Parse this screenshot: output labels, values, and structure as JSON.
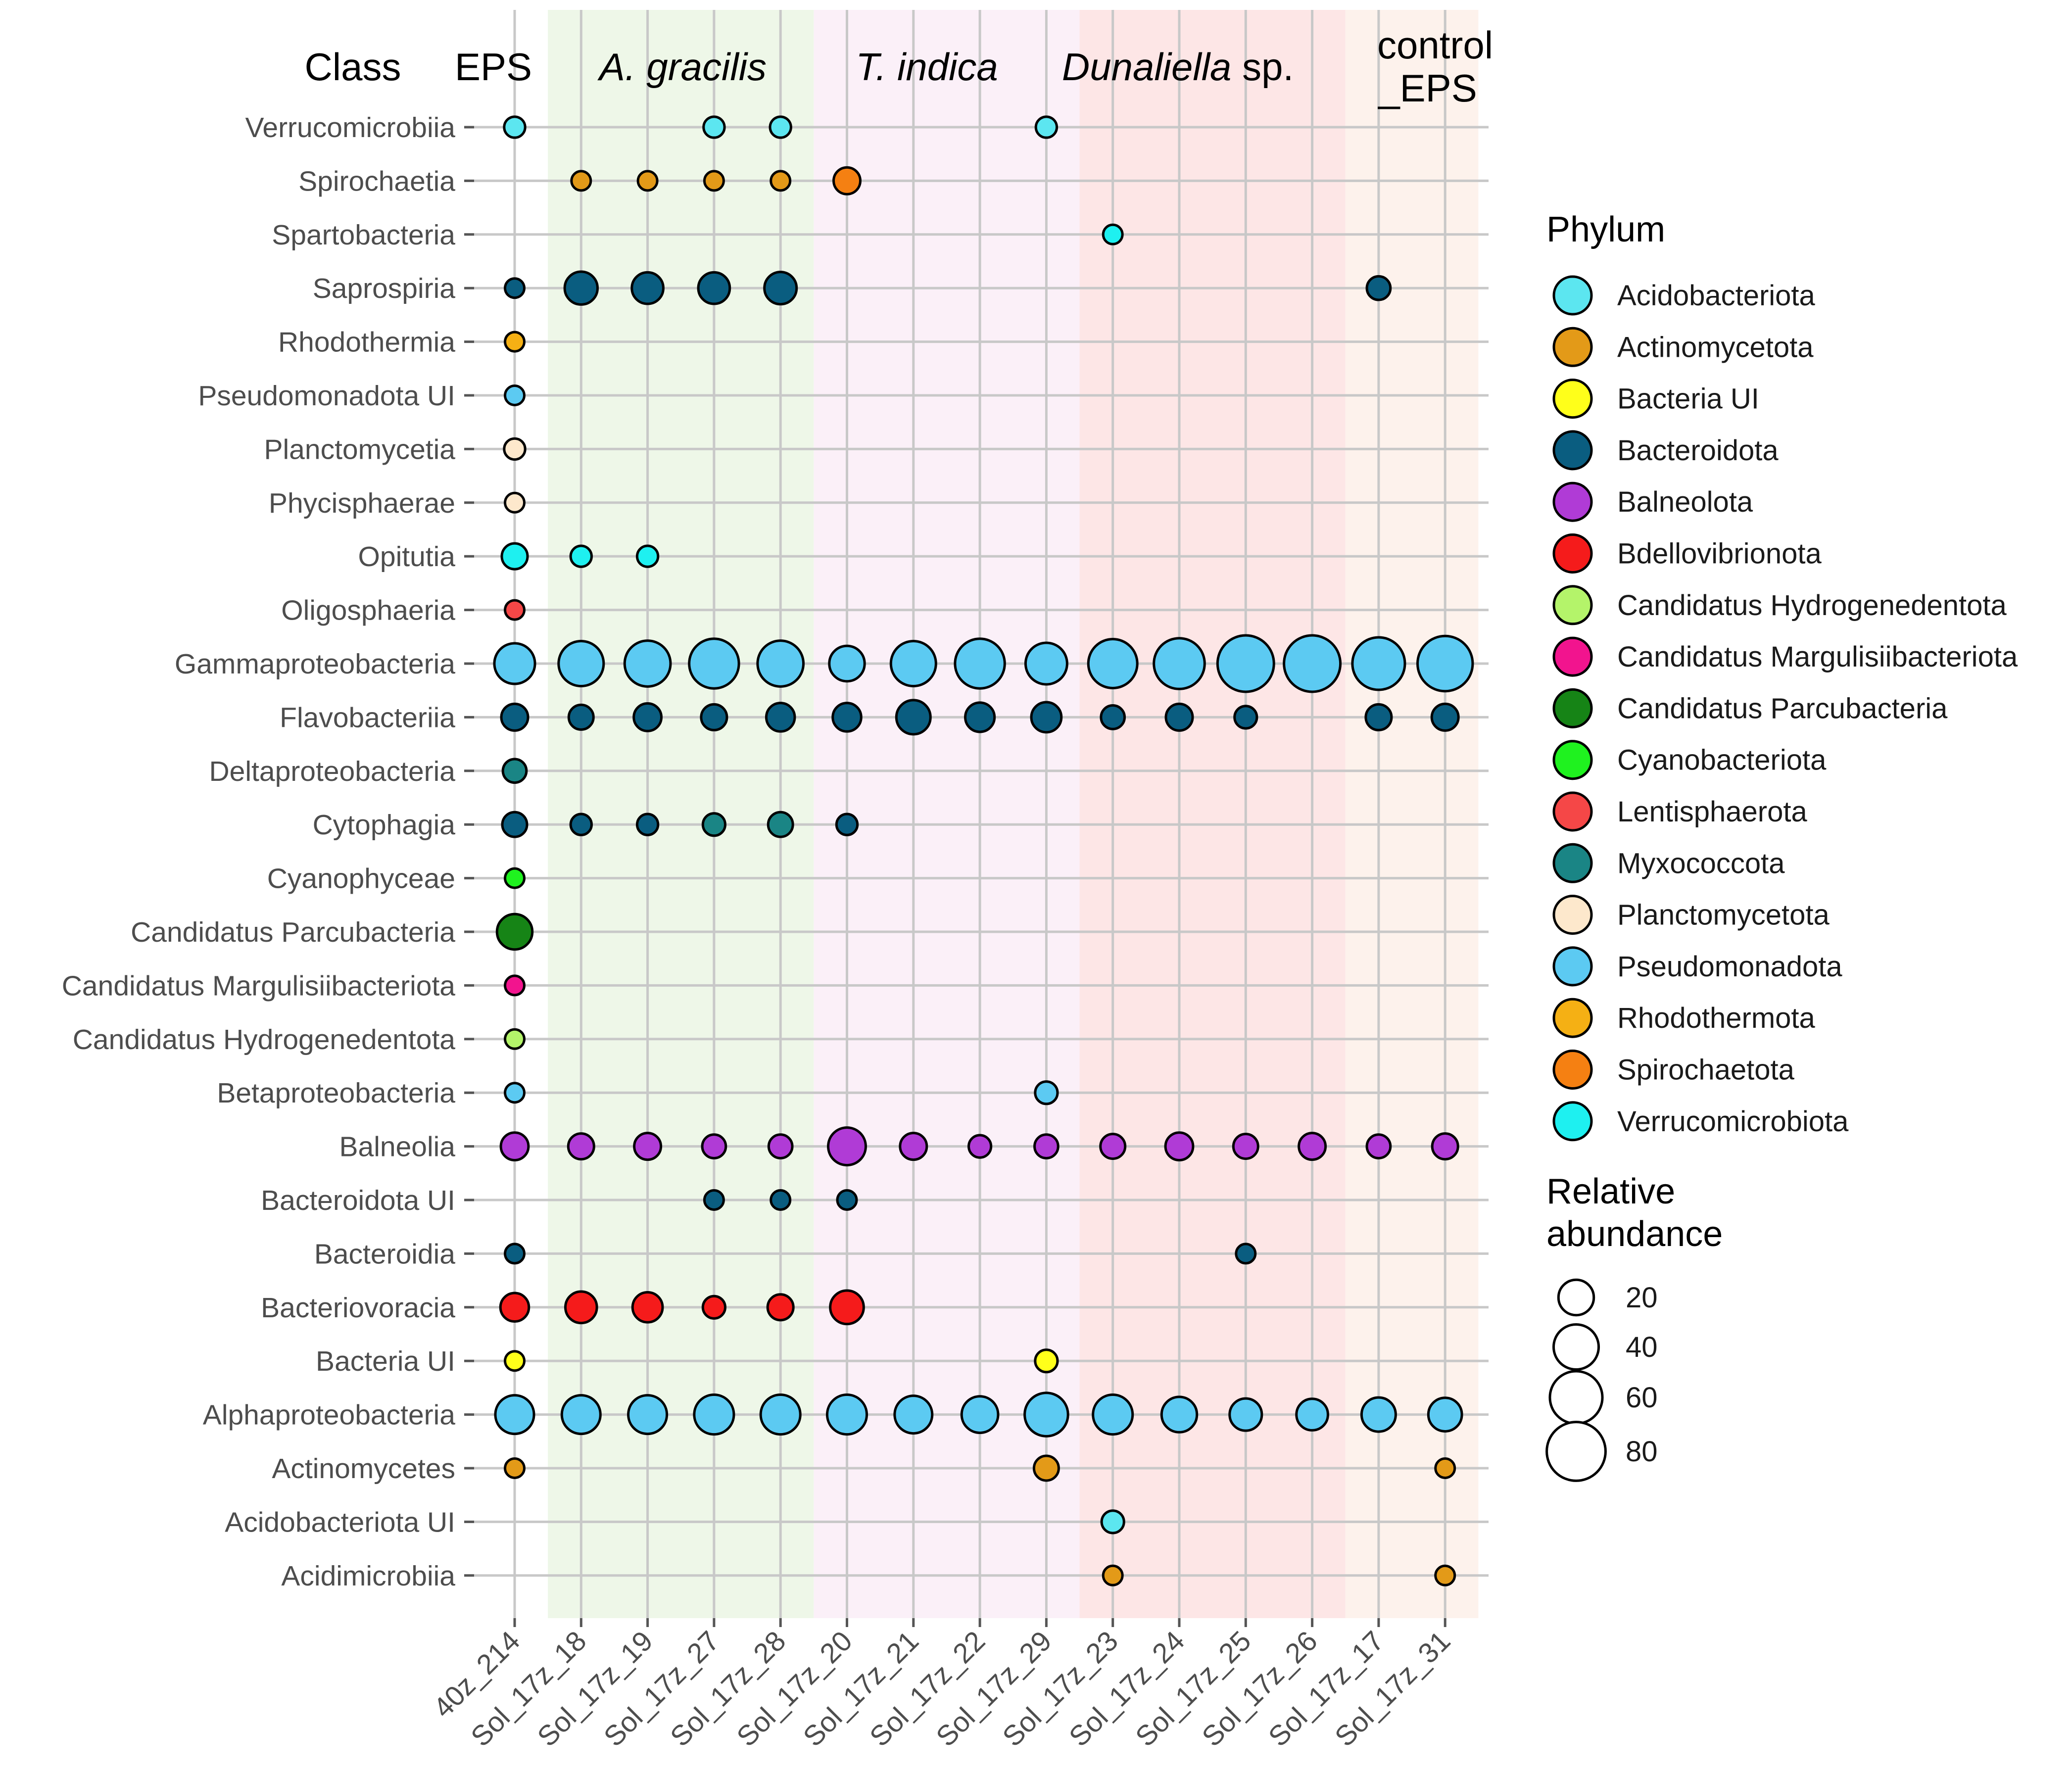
{
  "chart_data": {
    "type": "bubble",
    "headers": {
      "class": "Class",
      "eps": "EPS",
      "groups": [
        {
          "name": "A. gracilis",
          "italic": "A. gracilis",
          "rest": "",
          "color": "#eef7e8",
          "from": "Sol_17z_18",
          "to": "Sol_17z_28"
        },
        {
          "name": "T. indica",
          "italic": "T. indica",
          "rest": "",
          "color": "#fbf0f8",
          "from": "Sol_17z_20",
          "to": "Sol_17z_29"
        },
        {
          "name": "Dunaliella sp.",
          "italic": "Dunaliella",
          "rest": " sp.",
          "color": "#fde6e6",
          "from": "Sol_17z_23",
          "to": "Sol_17z_26"
        },
        {
          "name": "control_EPS",
          "line1": "control",
          "line2": "_EPS",
          "color": "#fdf2ec",
          "from": "Sol_17z_17",
          "to": "Sol_17z_31"
        }
      ]
    },
    "samples": [
      "40z_214",
      "Sol_17z_18",
      "Sol_17z_19",
      "Sol_17z_27",
      "Sol_17z_28",
      "Sol_17z_20",
      "Sol_17z_21",
      "Sol_17z_22",
      "Sol_17z_29",
      "Sol_17z_23",
      "Sol_17z_24",
      "Sol_17z_25",
      "Sol_17z_26",
      "Sol_17z_17",
      "Sol_17z_31"
    ],
    "classes": [
      "Verrucomicrobiia",
      "Spirochaetia",
      "Spartobacteria",
      "Saprospiria",
      "Rhodothermia",
      "Pseudomonadota UI",
      "Planctomycetia",
      "Phycisphaerae",
      "Opitutia",
      "Oligosphaeria",
      "Gammaproteobacteria",
      "Flavobacteriia",
      "Deltaproteobacteria",
      "Cytophagia",
      "Cyanophyceae",
      "Candidatus Parcubacteria",
      "Candidatus Margulisiibacteriota",
      "Candidatus Hydrogenedentota",
      "Betaproteobacteria",
      "Balneolia",
      "Bacteroidota UI",
      "Bacteroidia",
      "Bacteriovoracia",
      "Bacteria UI",
      "Alphaproteobacteria",
      "Actinomycetes",
      "Acidobacteriota UI",
      "Acidimicrobiia"
    ],
    "phyla": [
      {
        "name": "Acidobacteriota",
        "color": "#5ce6f0"
      },
      {
        "name": "Actinomycetota",
        "color": "#e39a18"
      },
      {
        "name": "Bacteria UI",
        "color": "#ffff1a"
      },
      {
        "name": "Bacteroidota",
        "color": "#0a5d80"
      },
      {
        "name": "Balneolota",
        "color": "#b03bd6"
      },
      {
        "name": "Bdellovibrionota",
        "color": "#f51b1b"
      },
      {
        "name": "Candidatus Hydrogenedentota",
        "color": "#b4f46a"
      },
      {
        "name": "Candidatus Margulisiibacteriota",
        "color": "#f2148e"
      },
      {
        "name": "Candidatus Parcubacteria",
        "color": "#168416"
      },
      {
        "name": "Cyanobacteriota",
        "color": "#1ff21f"
      },
      {
        "name": "Lentisphaerota",
        "color": "#f54747"
      },
      {
        "name": "Myxococcota",
        "color": "#1a8585"
      },
      {
        "name": "Planctomycetota",
        "color": "#fde8cc"
      },
      {
        "name": "Pseudomonadota",
        "color": "#5ccaf2"
      },
      {
        "name": "Rhodothermota",
        "color": "#f5b014"
      },
      {
        "name": "Spirochaetota",
        "color": "#f58012"
      },
      {
        "name": "Verrucomicrobiota",
        "color": "#1ef0f0"
      }
    ],
    "size_legend": {
      "title_line1": "Relative",
      "title_line2": "abundance",
      "values": [
        20,
        40,
        60,
        80
      ]
    },
    "legend_title": "Phylum",
    "points": [
      {
        "class": "Verrucomicrobiia",
        "phylum": "Acidobacteriota",
        "sample": "40z_214",
        "value": 3
      },
      {
        "class": "Verrucomicrobiia",
        "phylum": "Acidobacteriota",
        "sample": "Sol_17z_27",
        "value": 3
      },
      {
        "class": "Verrucomicrobiia",
        "phylum": "Acidobacteriota",
        "sample": "Sol_17z_28",
        "value": 3
      },
      {
        "class": "Verrucomicrobiia",
        "phylum": "Acidobacteriota",
        "sample": "Sol_17z_29",
        "value": 3
      },
      {
        "class": "Spirochaetia",
        "phylum": "Actinomycetota",
        "sample": "Sol_17z_18",
        "value": 2
      },
      {
        "class": "Spirochaetia",
        "phylum": "Actinomycetota",
        "sample": "Sol_17z_19",
        "value": 2
      },
      {
        "class": "Spirochaetia",
        "phylum": "Actinomycetota",
        "sample": "Sol_17z_27",
        "value": 2
      },
      {
        "class": "Spirochaetia",
        "phylum": "Actinomycetota",
        "sample": "Sol_17z_28",
        "value": 2
      },
      {
        "class": "Spirochaetia",
        "phylum": "Spirochaetota",
        "sample": "Sol_17z_20",
        "value": 8
      },
      {
        "class": "Spartobacteria",
        "phylum": "Verrucomicrobiota",
        "sample": "Sol_17z_23",
        "value": 2
      },
      {
        "class": "Saprospiria",
        "phylum": "Bacteroidota",
        "sample": "40z_214",
        "value": 2
      },
      {
        "class": "Saprospiria",
        "phylum": "Bacteroidota",
        "sample": "Sol_17z_18",
        "value": 16
      },
      {
        "class": "Saprospiria",
        "phylum": "Bacteroidota",
        "sample": "Sol_17z_19",
        "value": 14
      },
      {
        "class": "Saprospiria",
        "phylum": "Bacteroidota",
        "sample": "Sol_17z_27",
        "value": 14
      },
      {
        "class": "Saprospiria",
        "phylum": "Bacteroidota",
        "sample": "Sol_17z_28",
        "value": 15
      },
      {
        "class": "Saprospiria",
        "phylum": "Bacteroidota",
        "sample": "Sol_17z_17",
        "value": 5
      },
      {
        "class": "Rhodothermia",
        "phylum": "Rhodothermota",
        "sample": "40z_214",
        "value": 2
      },
      {
        "class": "Pseudomonadota UI",
        "phylum": "Pseudomonadota",
        "sample": "40z_214",
        "value": 2
      },
      {
        "class": "Planctomycetia",
        "phylum": "Planctomycetota",
        "sample": "40z_214",
        "value": 3
      },
      {
        "class": "Phycisphaerae",
        "phylum": "Planctomycetota",
        "sample": "40z_214",
        "value": 2
      },
      {
        "class": "Opitutia",
        "phylum": "Verrucomicrobiota",
        "sample": "40z_214",
        "value": 7
      },
      {
        "class": "Opitutia",
        "phylum": "Verrucomicrobiota",
        "sample": "Sol_17z_18",
        "value": 3
      },
      {
        "class": "Opitutia",
        "phylum": "Verrucomicrobiota",
        "sample": "Sol_17z_19",
        "value": 3
      },
      {
        "class": "Oligosphaeria",
        "phylum": "Lentisphaerota",
        "sample": "40z_214",
        "value": 2
      },
      {
        "class": "Gammaproteobacteria",
        "phylum": "Pseudomonadota",
        "sample": "40z_214",
        "value": 30
      },
      {
        "class": "Gammaproteobacteria",
        "phylum": "Pseudomonadota",
        "sample": "Sol_17z_18",
        "value": 40
      },
      {
        "class": "Gammaproteobacteria",
        "phylum": "Pseudomonadota",
        "sample": "Sol_17z_19",
        "value": 42
      },
      {
        "class": "Gammaproteobacteria",
        "phylum": "Pseudomonadota",
        "sample": "Sol_17z_27",
        "value": 52
      },
      {
        "class": "Gammaproteobacteria",
        "phylum": "Pseudomonadota",
        "sample": "Sol_17z_28",
        "value": 42
      },
      {
        "class": "Gammaproteobacteria",
        "phylum": "Pseudomonadota",
        "sample": "Sol_17z_20",
        "value": 20
      },
      {
        "class": "Gammaproteobacteria",
        "phylum": "Pseudomonadota",
        "sample": "Sol_17z_21",
        "value": 40
      },
      {
        "class": "Gammaproteobacteria",
        "phylum": "Pseudomonadota",
        "sample": "Sol_17z_22",
        "value": 52
      },
      {
        "class": "Gammaproteobacteria",
        "phylum": "Pseudomonadota",
        "sample": "Sol_17z_29",
        "value": 32
      },
      {
        "class": "Gammaproteobacteria",
        "phylum": "Pseudomonadota",
        "sample": "Sol_17z_23",
        "value": 50
      },
      {
        "class": "Gammaproteobacteria",
        "phylum": "Pseudomonadota",
        "sample": "Sol_17z_24",
        "value": 55
      },
      {
        "class": "Gammaproteobacteria",
        "phylum": "Pseudomonadota",
        "sample": "Sol_17z_25",
        "value": 72
      },
      {
        "class": "Gammaproteobacteria",
        "phylum": "Pseudomonadota",
        "sample": "Sol_17z_26",
        "value": 72
      },
      {
        "class": "Gammaproteobacteria",
        "phylum": "Pseudomonadota",
        "sample": "Sol_17z_17",
        "value": 60
      },
      {
        "class": "Gammaproteobacteria",
        "phylum": "Pseudomonadota",
        "sample": "Sol_17z_31",
        "value": 68
      },
      {
        "class": "Flavobacteriia",
        "phylum": "Bacteroidota",
        "sample": "40z_214",
        "value": 8
      },
      {
        "class": "Flavobacteriia",
        "phylum": "Bacteroidota",
        "sample": "Sol_17z_18",
        "value": 6
      },
      {
        "class": "Flavobacteriia",
        "phylum": "Bacteroidota",
        "sample": "Sol_17z_19",
        "value": 9
      },
      {
        "class": "Flavobacteriia",
        "phylum": "Bacteroidota",
        "sample": "Sol_17z_27",
        "value": 7
      },
      {
        "class": "Flavobacteriia",
        "phylum": "Bacteroidota",
        "sample": "Sol_17z_28",
        "value": 10
      },
      {
        "class": "Flavobacteriia",
        "phylum": "Bacteroidota",
        "sample": "Sol_17z_20",
        "value": 10
      },
      {
        "class": "Flavobacteriia",
        "phylum": "Bacteroidota",
        "sample": "Sol_17z_21",
        "value": 18
      },
      {
        "class": "Flavobacteriia",
        "phylum": "Bacteroidota",
        "sample": "Sol_17z_22",
        "value": 11
      },
      {
        "class": "Flavobacteriia",
        "phylum": "Bacteroidota",
        "sample": "Sol_17z_29",
        "value": 12
      },
      {
        "class": "Flavobacteriia",
        "phylum": "Bacteroidota",
        "sample": "Sol_17z_23",
        "value": 5
      },
      {
        "class": "Flavobacteriia",
        "phylum": "Bacteroidota",
        "sample": "Sol_17z_24",
        "value": 8
      },
      {
        "class": "Flavobacteriia",
        "phylum": "Bacteroidota",
        "sample": "Sol_17z_25",
        "value": 4
      },
      {
        "class": "Flavobacteriia",
        "phylum": "Bacteroidota",
        "sample": "Sol_17z_17",
        "value": 7
      },
      {
        "class": "Flavobacteriia",
        "phylum": "Bacteroidota",
        "sample": "Sol_17z_31",
        "value": 8
      },
      {
        "class": "Deltaproteobacteria",
        "phylum": "Myxococcota",
        "sample": "40z_214",
        "value": 5
      },
      {
        "class": "Cytophagia",
        "phylum": "Bacteroidota",
        "sample": "40z_214",
        "value": 6
      },
      {
        "class": "Cytophagia",
        "phylum": "Bacteroidota",
        "sample": "Sol_17z_18",
        "value": 3
      },
      {
        "class": "Cytophagia",
        "phylum": "Bacteroidota",
        "sample": "Sol_17z_19",
        "value": 3
      },
      {
        "class": "Cytophagia",
        "phylum": "Myxococcota",
        "sample": "Sol_17z_27",
        "value": 4
      },
      {
        "class": "Cytophagia",
        "phylum": "Myxococcota",
        "sample": "Sol_17z_28",
        "value": 6
      },
      {
        "class": "Cytophagia",
        "phylum": "Bacteroidota",
        "sample": "Sol_17z_20",
        "value": 3
      },
      {
        "class": "Cyanophyceae",
        "phylum": "Cyanobacteriota",
        "sample": "40z_214",
        "value": 2
      },
      {
        "class": "Candidatus Parcubacteria",
        "phylum": "Candidatus Parcubacteria",
        "sample": "40z_214",
        "value": 20
      },
      {
        "class": "Candidatus Margulisiibacteriota",
        "phylum": "Candidatus Margulisiibacteriota",
        "sample": "40z_214",
        "value": 2
      },
      {
        "class": "Candidatus Hydrogenedentota",
        "phylum": "Candidatus Hydrogenedentota",
        "sample": "40z_214",
        "value": 2
      },
      {
        "class": "Betaproteobacteria",
        "phylum": "Pseudomonadota",
        "sample": "40z_214",
        "value": 2
      },
      {
        "class": "Betaproteobacteria",
        "phylum": "Pseudomonadota",
        "sample": "Sol_17z_29",
        "value": 4
      },
      {
        "class": "Balneolia",
        "phylum": "Balneolota",
        "sample": "40z_214",
        "value": 9
      },
      {
        "class": "Balneolia",
        "phylum": "Balneolota",
        "sample": "Sol_17z_18",
        "value": 7
      },
      {
        "class": "Balneolia",
        "phylum": "Balneolota",
        "sample": "Sol_17z_19",
        "value": 8
      },
      {
        "class": "Balneolia",
        "phylum": "Balneolota",
        "sample": "Sol_17z_27",
        "value": 5
      },
      {
        "class": "Balneolia",
        "phylum": "Balneolota",
        "sample": "Sol_17z_28",
        "value": 5
      },
      {
        "class": "Balneolia",
        "phylum": "Balneolota",
        "sample": "Sol_17z_20",
        "value": 24
      },
      {
        "class": "Balneolia",
        "phylum": "Balneolota",
        "sample": "Sol_17z_21",
        "value": 8
      },
      {
        "class": "Balneolia",
        "phylum": "Balneolota",
        "sample": "Sol_17z_22",
        "value": 4
      },
      {
        "class": "Balneolia",
        "phylum": "Balneolota",
        "sample": "Sol_17z_29",
        "value": 5
      },
      {
        "class": "Balneolia",
        "phylum": "Balneolota",
        "sample": "Sol_17z_23",
        "value": 6
      },
      {
        "class": "Balneolia",
        "phylum": "Balneolota",
        "sample": "Sol_17z_24",
        "value": 9
      },
      {
        "class": "Balneolia",
        "phylum": "Balneolota",
        "sample": "Sol_17z_25",
        "value": 6
      },
      {
        "class": "Balneolia",
        "phylum": "Balneolota",
        "sample": "Sol_17z_26",
        "value": 8
      },
      {
        "class": "Balneolia",
        "phylum": "Balneolota",
        "sample": "Sol_17z_17",
        "value": 5
      },
      {
        "class": "Balneolia",
        "phylum": "Balneolota",
        "sample": "Sol_17z_31",
        "value": 7
      },
      {
        "class": "Bacteroidota UI",
        "phylum": "Bacteroidota",
        "sample": "Sol_17z_27",
        "value": 2
      },
      {
        "class": "Bacteroidota UI",
        "phylum": "Bacteroidota",
        "sample": "Sol_17z_28",
        "value": 2
      },
      {
        "class": "Bacteroidota UI",
        "phylum": "Bacteroidota",
        "sample": "Sol_17z_20",
        "value": 2
      },
      {
        "class": "Bacteroidia",
        "phylum": "Bacteroidota",
        "sample": "40z_214",
        "value": 2
      },
      {
        "class": "Bacteroidia",
        "phylum": "Bacteroidota",
        "sample": "Sol_17z_25",
        "value": 2
      },
      {
        "class": "Bacteriovoracia",
        "phylum": "Bdellovibrionota",
        "sample": "40z_214",
        "value": 10
      },
      {
        "class": "Bacteriovoracia",
        "phylum": "Bdellovibrionota",
        "sample": "Sol_17z_18",
        "value": 14
      },
      {
        "class": "Bacteriovoracia",
        "phylum": "Bdellovibrionota",
        "sample": "Sol_17z_19",
        "value": 12
      },
      {
        "class": "Bacteriovoracia",
        "phylum": "Bdellovibrionota",
        "sample": "Sol_17z_27",
        "value": 4
      },
      {
        "class": "Bacteriovoracia",
        "phylum": "Bdellovibrionota",
        "sample": "Sol_17z_28",
        "value": 7
      },
      {
        "class": "Bacteriovoracia",
        "phylum": "Bdellovibrionota",
        "sample": "Sol_17z_20",
        "value": 17
      },
      {
        "class": "Bacteria UI",
        "phylum": "Bacteria UI",
        "sample": "40z_214",
        "value": 2
      },
      {
        "class": "Bacteria UI",
        "phylum": "Bacteria UI",
        "sample": "Sol_17z_29",
        "value": 4
      },
      {
        "class": "Alphaproteobacteria",
        "phylum": "Pseudomonadota",
        "sample": "40z_214",
        "value": 26
      },
      {
        "class": "Alphaproteobacteria",
        "phylum": "Pseudomonadota",
        "sample": "Sol_17z_18",
        "value": 26
      },
      {
        "class": "Alphaproteobacteria",
        "phylum": "Pseudomonadota",
        "sample": "Sol_17z_19",
        "value": 26
      },
      {
        "class": "Alphaproteobacteria",
        "phylum": "Pseudomonadota",
        "sample": "Sol_17z_27",
        "value": 28
      },
      {
        "class": "Alphaproteobacteria",
        "phylum": "Pseudomonadota",
        "sample": "Sol_17z_28",
        "value": 28
      },
      {
        "class": "Alphaproteobacteria",
        "phylum": "Pseudomonadota",
        "sample": "Sol_17z_20",
        "value": 28
      },
      {
        "class": "Alphaproteobacteria",
        "phylum": "Pseudomonadota",
        "sample": "Sol_17z_21",
        "value": 24
      },
      {
        "class": "Alphaproteobacteria",
        "phylum": "Pseudomonadota",
        "sample": "Sol_17z_22",
        "value": 22
      },
      {
        "class": "Alphaproteobacteria",
        "phylum": "Pseudomonadota",
        "sample": "Sol_17z_29",
        "value": 36
      },
      {
        "class": "Alphaproteobacteria",
        "phylum": "Pseudomonadota",
        "sample": "Sol_17z_23",
        "value": 28
      },
      {
        "class": "Alphaproteobacteria",
        "phylum": "Pseudomonadota",
        "sample": "Sol_17z_24",
        "value": 20
      },
      {
        "class": "Alphaproteobacteria",
        "phylum": "Pseudomonadota",
        "sample": "Sol_17z_25",
        "value": 15
      },
      {
        "class": "Alphaproteobacteria",
        "phylum": "Pseudomonadota",
        "sample": "Sol_17z_26",
        "value": 14
      },
      {
        "class": "Alphaproteobacteria",
        "phylum": "Pseudomonadota",
        "sample": "Sol_17z_17",
        "value": 18
      },
      {
        "class": "Alphaproteobacteria",
        "phylum": "Pseudomonadota",
        "sample": "Sol_17z_31",
        "value": 17
      },
      {
        "class": "Actinomycetes",
        "phylum": "Actinomycetota",
        "sample": "40z_214",
        "value": 2
      },
      {
        "class": "Actinomycetes",
        "phylum": "Actinomycetota",
        "sample": "Sol_17z_29",
        "value": 6
      },
      {
        "class": "Actinomycetes",
        "phylum": "Actinomycetota",
        "sample": "Sol_17z_31",
        "value": 2
      },
      {
        "class": "Acidobacteriota UI",
        "phylum": "Acidobacteriota",
        "sample": "Sol_17z_23",
        "value": 4
      },
      {
        "class": "Acidimicrobiia",
        "phylum": "Actinomycetota",
        "sample": "Sol_17z_23",
        "value": 2
      },
      {
        "class": "Acidimicrobiia",
        "phylum": "Actinomycetota",
        "sample": "Sol_17z_31",
        "value": 2
      }
    ],
    "xlabel": "",
    "ylabel": "",
    "grid": true,
    "legend_position": "right"
  }
}
